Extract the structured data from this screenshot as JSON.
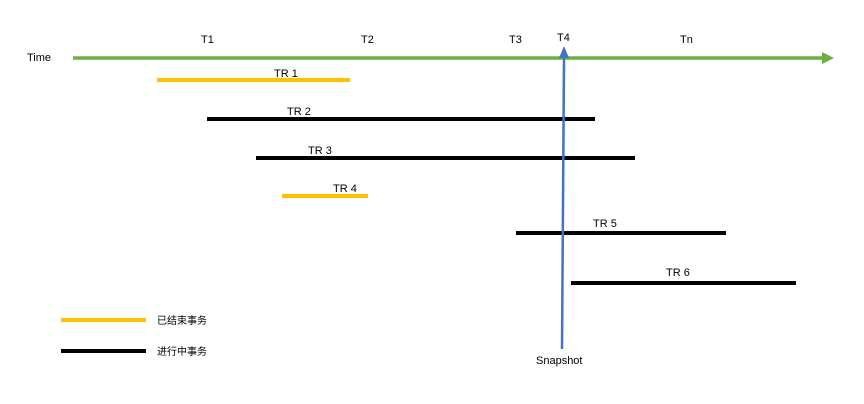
{
  "timeline": {
    "label": "Time",
    "color": "#70ad47",
    "markers": [
      "T1",
      "T2",
      "T3",
      "T4",
      "Tn"
    ]
  },
  "transactions": [
    {
      "label": "TR 1",
      "status": "ended"
    },
    {
      "label": "TR 2",
      "status": "active"
    },
    {
      "label": "TR 3",
      "status": "active"
    },
    {
      "label": "TR 4",
      "status": "ended"
    },
    {
      "label": "TR 5",
      "status": "active"
    },
    {
      "label": "TR 6",
      "status": "active"
    }
  ],
  "snapshot": {
    "label": "Snapshot",
    "color": "#4472c4"
  },
  "legend": {
    "ended": {
      "label": "已结束事务",
      "color": "#ffc000"
    },
    "active": {
      "label": "进行中事务",
      "color": "#000000"
    }
  }
}
